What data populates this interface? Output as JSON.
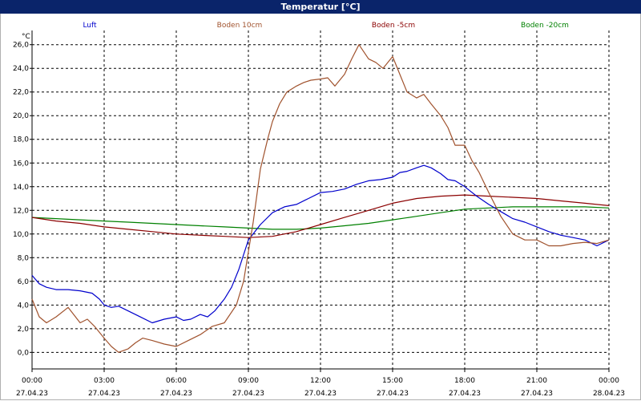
{
  "window": {
    "title": "Temperatur [°C]"
  },
  "colors": {
    "titlebar": "#0a246a",
    "grid": "#000000",
    "luft": "#0000cc",
    "boden10": "#a0522d",
    "boden5": "#8b0000",
    "boden20": "#008000"
  },
  "chart_data": {
    "type": "line",
    "title": "Temperatur [°C]",
    "ylabel": "°C",
    "ylim": [
      -1.4,
      27.2
    ],
    "yticks": [
      "0,0",
      "2,0",
      "4,0",
      "6,0",
      "8,0",
      "10,0",
      "12,0",
      "14,0",
      "16,0",
      "18,0",
      "20,0",
      "22,0",
      "24,0",
      "26,0"
    ],
    "ytick_values": [
      0,
      2,
      4,
      6,
      8,
      10,
      12,
      14,
      16,
      18,
      20,
      22,
      24,
      26
    ],
    "xlim": [
      0,
      24
    ],
    "xticks": [
      {
        "time": "00:00",
        "date": "27.04.23"
      },
      {
        "time": "03:00",
        "date": "27.04.23"
      },
      {
        "time": "06:00",
        "date": "27.04.23"
      },
      {
        "time": "09:00",
        "date": "27.04.23"
      },
      {
        "time": "12:00",
        "date": "27.04.23"
      },
      {
        "time": "15:00",
        "date": "27.04.23"
      },
      {
        "time": "18:00",
        "date": "27.04.23"
      },
      {
        "time": "21:00",
        "date": "27.04.23"
      },
      {
        "time": "00:00",
        "date": "28.04.23"
      }
    ],
    "grid": true,
    "legend_position": "top",
    "series": [
      {
        "name": "Luft",
        "color": "#0000cc",
        "x": [
          0,
          0.3,
          0.6,
          1,
          1.5,
          2,
          2.5,
          2.8,
          3,
          3.3,
          3.6,
          4,
          4.5,
          5,
          5.5,
          6,
          6.3,
          6.6,
          7,
          7.3,
          7.6,
          8,
          8.3,
          8.6,
          9,
          9.5,
          10,
          10.5,
          11,
          11.5,
          12,
          12.5,
          13,
          13.5,
          14,
          14.5,
          15,
          15.3,
          15.6,
          16,
          16.3,
          16.6,
          17,
          17.3,
          17.6,
          18,
          18.5,
          19,
          19.5,
          20,
          20.5,
          21,
          21.5,
          22,
          22.5,
          23,
          23.5,
          24
        ],
        "y": [
          6.5,
          5.8,
          5.5,
          5.3,
          5.3,
          5.2,
          5.0,
          4.5,
          4.0,
          3.8,
          3.9,
          3.5,
          3.0,
          2.5,
          2.8,
          3.0,
          2.7,
          2.8,
          3.2,
          3.0,
          3.5,
          4.5,
          5.5,
          7.0,
          9.5,
          10.8,
          11.8,
          12.3,
          12.5,
          13.0,
          13.5,
          13.6,
          13.8,
          14.2,
          14.5,
          14.6,
          14.8,
          15.2,
          15.3,
          15.6,
          15.8,
          15.6,
          15.1,
          14.6,
          14.5,
          14.0,
          13.2,
          12.5,
          11.9,
          11.3,
          11.0,
          10.6,
          10.2,
          9.9,
          9.7,
          9.5,
          9.0,
          9.5
        ]
      },
      {
        "name": "Boden 10cm",
        "color": "#a0522d",
        "x": [
          0,
          0.3,
          0.6,
          1,
          1.5,
          2,
          2.3,
          2.6,
          3,
          3.3,
          3.6,
          4,
          4.3,
          4.6,
          5,
          5.5,
          6,
          6.5,
          7,
          7.5,
          8,
          8.5,
          8.8,
          9,
          9.2,
          9.5,
          9.8,
          10,
          10.3,
          10.6,
          11,
          11.3,
          11.6,
          12,
          12.3,
          12.6,
          13,
          13.3,
          13.6,
          14,
          14.3,
          14.6,
          15,
          15.3,
          15.6,
          16,
          16.3,
          16.6,
          17,
          17.3,
          17.6,
          18,
          18.3,
          18.6,
          19,
          19.5,
          20,
          20.5,
          21,
          21.5,
          22,
          22.5,
          23,
          23.5,
          24
        ],
        "y": [
          4.5,
          3.0,
          2.5,
          3.0,
          3.8,
          2.5,
          2.8,
          2.2,
          1.2,
          0.5,
          0.0,
          0.3,
          0.8,
          1.2,
          1.0,
          0.7,
          0.5,
          1.0,
          1.5,
          2.2,
          2.5,
          4.0,
          6.0,
          8.5,
          11.0,
          15.5,
          18.0,
          19.5,
          21.0,
          22.0,
          22.5,
          22.8,
          23.0,
          23.1,
          23.2,
          22.5,
          23.5,
          24.8,
          26.0,
          24.8,
          24.5,
          24.0,
          25.0,
          23.5,
          22.0,
          21.5,
          21.8,
          21.0,
          20.0,
          19.0,
          17.5,
          17.5,
          16.2,
          15.2,
          13.5,
          11.5,
          10.0,
          9.5,
          9.5,
          9.0,
          9.0,
          9.2,
          9.3,
          9.2,
          9.5
        ]
      },
      {
        "name": "Boden -5cm",
        "color": "#8b0000",
        "x": [
          0,
          1,
          2,
          3,
          4,
          5,
          6,
          7,
          8,
          9,
          10,
          11,
          12,
          13,
          14,
          15,
          16,
          17,
          18,
          19,
          20,
          21,
          22,
          23,
          24
        ],
        "y": [
          11.4,
          11.1,
          10.9,
          10.6,
          10.4,
          10.2,
          10.0,
          9.9,
          9.8,
          9.7,
          9.8,
          10.2,
          10.8,
          11.4,
          12.0,
          12.6,
          13.0,
          13.2,
          13.3,
          13.2,
          13.1,
          13.0,
          12.8,
          12.6,
          12.4
        ]
      },
      {
        "name": "Boden -20cm",
        "color": "#008000",
        "x": [
          0,
          1,
          2,
          3,
          4,
          5,
          6,
          7,
          8,
          9,
          10,
          11,
          12,
          13,
          14,
          15,
          16,
          17,
          18,
          19,
          20,
          21,
          22,
          23,
          24
        ],
        "y": [
          11.4,
          11.3,
          11.2,
          11.1,
          11.0,
          10.9,
          10.8,
          10.7,
          10.6,
          10.5,
          10.4,
          10.4,
          10.5,
          10.7,
          10.9,
          11.2,
          11.5,
          11.8,
          12.1,
          12.2,
          12.3,
          12.3,
          12.3,
          12.3,
          12.2
        ]
      }
    ]
  }
}
